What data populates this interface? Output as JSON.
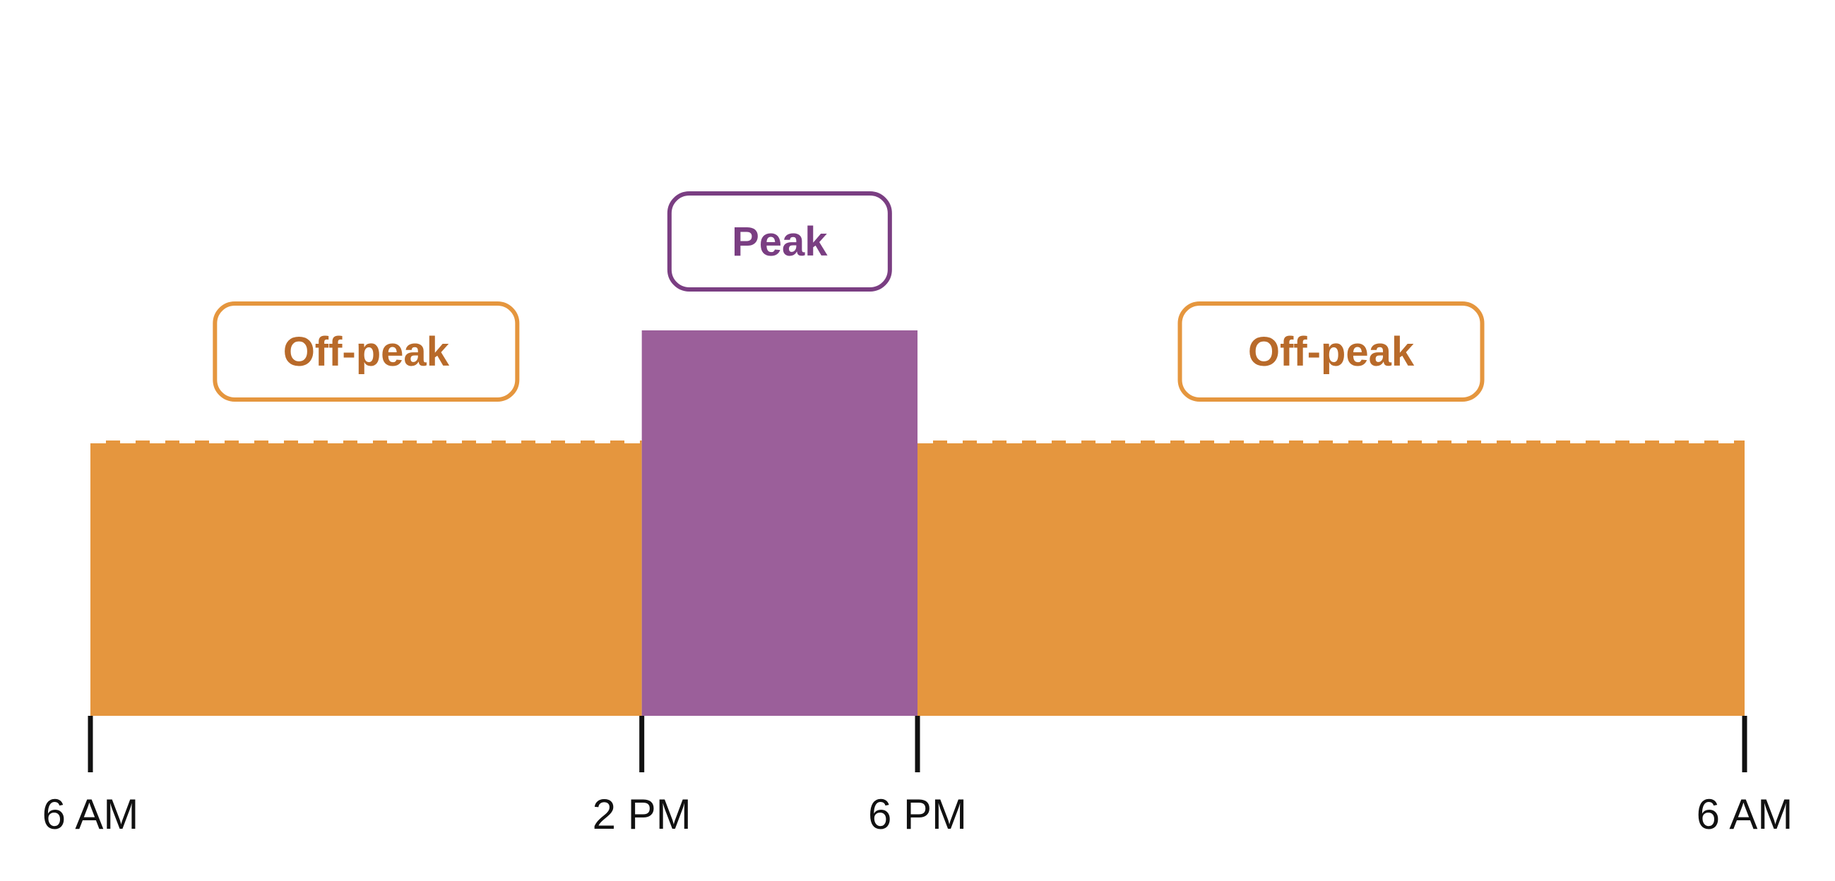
{
  "chart_data": {
    "type": "bar",
    "title": "",
    "xlabel": "",
    "ylabel": "",
    "x_axis": {
      "ticks": [
        {
          "hour": 6,
          "label": "6 AM"
        },
        {
          "hour": 14,
          "label": "2 PM"
        },
        {
          "hour": 18,
          "label": "6 PM"
        },
        {
          "hour": 30,
          "label": "6 AM"
        }
      ],
      "range_hours": [
        6,
        30
      ]
    },
    "y_range": [
      0,
      3.5
    ],
    "grid": false,
    "legend": "none",
    "periods": [
      {
        "label": "Off-peak",
        "start_hour": 6,
        "end_hour": 14,
        "level": 1.0,
        "color": "#E5963E",
        "label_color": "#B86A2A",
        "border_color": "#E5963E",
        "dashed_top": true
      },
      {
        "label": "Peak",
        "start_hour": 14,
        "end_hour": 18,
        "level": 1.4,
        "color": "#9B5F9A",
        "label_color": "#7A3E82",
        "border_color": "#7A3E82",
        "dashed_top": false
      },
      {
        "label": "Off-peak",
        "start_hour": 18,
        "end_hour": 30,
        "level": 1.0,
        "color": "#E5963E",
        "label_color": "#B86A2A",
        "border_color": "#E5963E",
        "dashed_top": true
      }
    ]
  }
}
